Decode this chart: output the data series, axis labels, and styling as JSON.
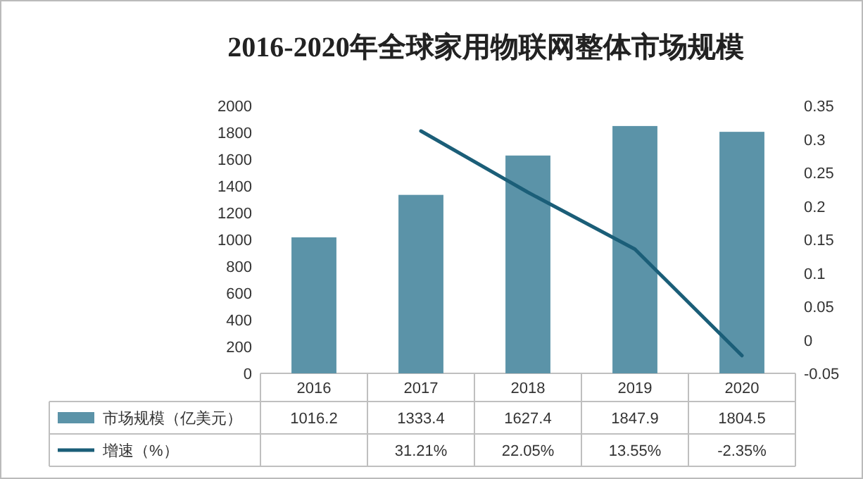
{
  "chart_data": {
    "type": "bar",
    "title": "2016-2020年全球家用物联网整体市场规模",
    "categories": [
      "2016",
      "2017",
      "2018",
      "2019",
      "2020"
    ],
    "series": [
      {
        "name": "市场规模（亿美元）",
        "color": "#5b93a8",
        "values": [
          1016.2,
          1333.4,
          1627.4,
          1847.9,
          1804.5
        ],
        "value_labels": [
          "1016.2",
          "1333.4",
          "1627.4",
          "1847.9",
          "1804.5"
        ]
      },
      {
        "name": "增速（%）",
        "type": "line",
        "axis": "y2",
        "color": "#1b5e78",
        "values": [
          null,
          0.3121,
          0.2205,
          0.1355,
          -0.0235
        ],
        "value_labels": [
          null,
          "31.21%",
          "22.05%",
          "13.55%",
          "-2.35%"
        ]
      }
    ],
    "ylim": [
      0,
      2000
    ],
    "yticks": [
      0,
      200,
      400,
      600,
      800,
      1000,
      1200,
      1400,
      1600,
      1800,
      2000
    ],
    "y2lim": [
      -0.05,
      0.35
    ],
    "y2ticks": [
      -0.05,
      0,
      0.05,
      0.1,
      0.15,
      0.2,
      0.25,
      0.3,
      0.35
    ],
    "grid": false,
    "legend": "bottom",
    "marker": "none",
    "line_style": "solid"
  }
}
